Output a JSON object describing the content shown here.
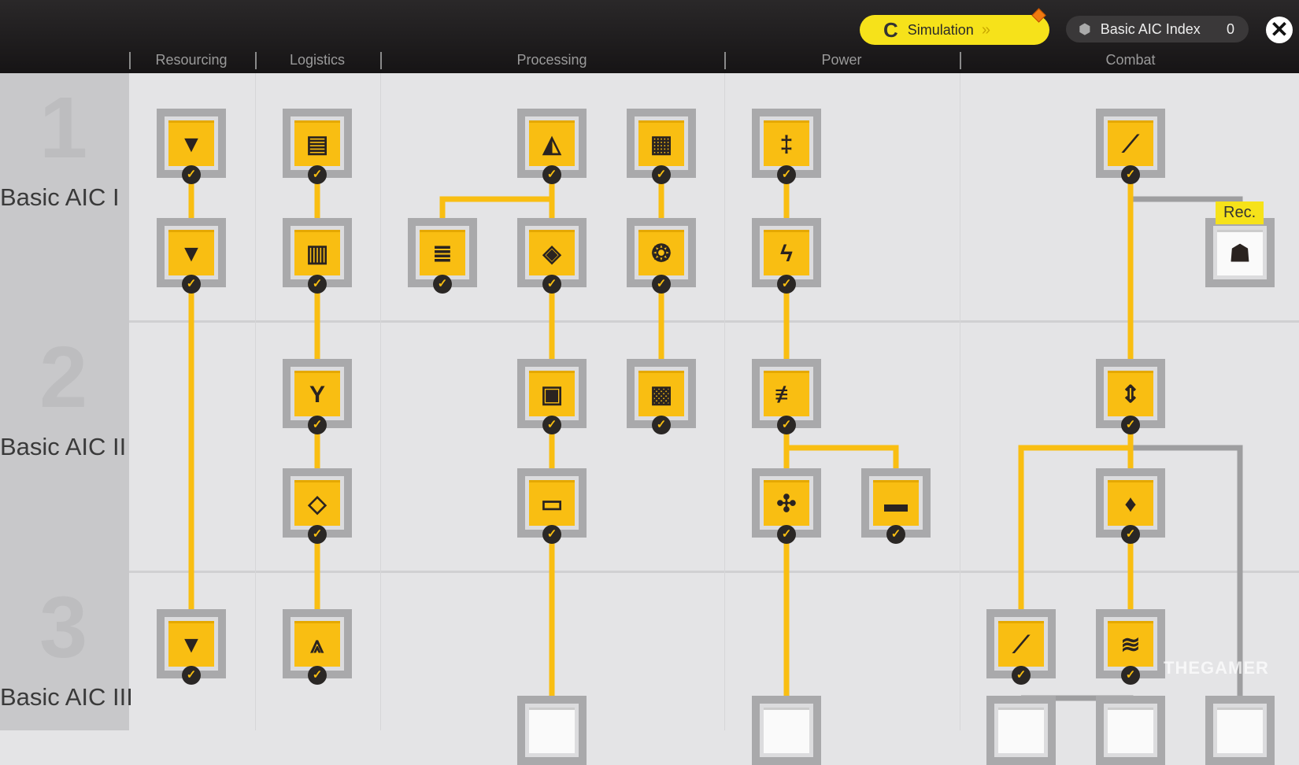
{
  "header": {
    "tabs": [
      "Resourcing",
      "Logistics",
      "Processing",
      "Power",
      "Combat"
    ],
    "simulation_label": "Simulation",
    "index_label": "Basic AIC Index",
    "index_value": "0"
  },
  "rows": [
    {
      "label": "Basic AIC I",
      "num": "1"
    },
    {
      "label": "Basic AIC II",
      "num": "2"
    },
    {
      "label": "Basic AIC III",
      "num": "3"
    }
  ],
  "rec_label": "Rec.",
  "watermark": "THEGAMER",
  "colors": {
    "accent": "#f9be12",
    "wire": "#f9be12",
    "wire_locked": "#9e9ea0",
    "sim": "#f6e21a"
  },
  "nodes": [
    {
      "c": 0,
      "r": 0,
      "icon": "drill-icon",
      "g": "▼",
      "done": true
    },
    {
      "c": 1,
      "r": 0,
      "icon": "storage-plus-icon",
      "g": "▤",
      "done": true
    },
    {
      "c": 3,
      "r": 0,
      "icon": "refinery-icon",
      "g": "◭",
      "done": true
    },
    {
      "c": 4,
      "r": 0,
      "icon": "crusher-icon",
      "g": "▦",
      "done": true
    },
    {
      "c": 5,
      "r": 0,
      "icon": "power-tower-icon",
      "g": "‡",
      "done": true
    },
    {
      "c": 8,
      "r": 0,
      "icon": "turret-icon",
      "g": "⟋",
      "done": true
    },
    {
      "c": 0,
      "r": 1,
      "icon": "drill-ii-icon",
      "g": "▼",
      "done": true
    },
    {
      "c": 1,
      "r": 1,
      "icon": "storage-filter-icon",
      "g": "▥",
      "done": true
    },
    {
      "c": 2,
      "r": 1,
      "icon": "stacker-icon",
      "g": "≣",
      "done": true
    },
    {
      "c": 3,
      "r": 1,
      "icon": "shaper-icon",
      "g": "◈",
      "done": true
    },
    {
      "c": 4,
      "r": 1,
      "icon": "grinder-icon",
      "g": "❂",
      "done": true
    },
    {
      "c": 5,
      "r": 1,
      "icon": "relay-icon",
      "g": "ϟ",
      "done": true
    },
    {
      "c": 9,
      "r": 1,
      "icon": "sentry-icon",
      "g": "☗",
      "done": false,
      "gray": true
    },
    {
      "c": 1,
      "r": 2,
      "icon": "splitter-icon",
      "g": "Y",
      "done": true
    },
    {
      "c": 3,
      "r": 2,
      "icon": "packer-icon",
      "g": "▣",
      "done": true
    },
    {
      "c": 4,
      "r": 2,
      "icon": "planter-icon",
      "g": "▩",
      "done": true
    },
    {
      "c": 5,
      "r": 2,
      "icon": "generator-icon",
      "g": "≢",
      "done": true
    },
    {
      "c": 8,
      "r": 2,
      "icon": "mortar-icon",
      "g": "⇕",
      "done": true
    },
    {
      "c": 1,
      "r": 3,
      "icon": "layer-icon",
      "g": "◇",
      "done": true
    },
    {
      "c": 3,
      "r": 3,
      "icon": "fabricator-icon",
      "g": "▭",
      "done": true
    },
    {
      "c": 5,
      "r": 3,
      "icon": "pylon-icon",
      "g": "✣",
      "done": true
    },
    {
      "c": 6,
      "r": 3,
      "icon": "battery-icon",
      "g": "▬",
      "done": true
    },
    {
      "c": 8,
      "r": 3,
      "icon": "flame-icon",
      "g": "♦",
      "done": true
    },
    {
      "c": 0,
      "r": 4,
      "icon": "drill-iii-icon",
      "g": "▼",
      "done": true
    },
    {
      "c": 1,
      "r": 4,
      "icon": "conveyor-icon",
      "g": "⩓",
      "done": true
    },
    {
      "c": 7,
      "r": 4,
      "icon": "turret-ii-icon",
      "g": "⟋",
      "done": true
    },
    {
      "c": 8,
      "r": 4,
      "icon": "wave-icon",
      "g": "≋",
      "done": true
    },
    {
      "c": 3,
      "r": 5,
      "icon": "locked-node-icon",
      "g": "",
      "done": false,
      "gray": true
    },
    {
      "c": 5,
      "r": 5,
      "icon": "locked-node-icon",
      "g": "",
      "done": false,
      "gray": true
    },
    {
      "c": 7,
      "r": 5,
      "icon": "locked-node-icon",
      "g": "",
      "done": false,
      "gray": true
    },
    {
      "c": 8,
      "r": 5,
      "icon": "locked-node-icon",
      "g": "",
      "done": false,
      "gray": true
    },
    {
      "c": 9,
      "r": 5,
      "icon": "locked-node-icon",
      "g": "",
      "done": false,
      "gray": true
    }
  ]
}
